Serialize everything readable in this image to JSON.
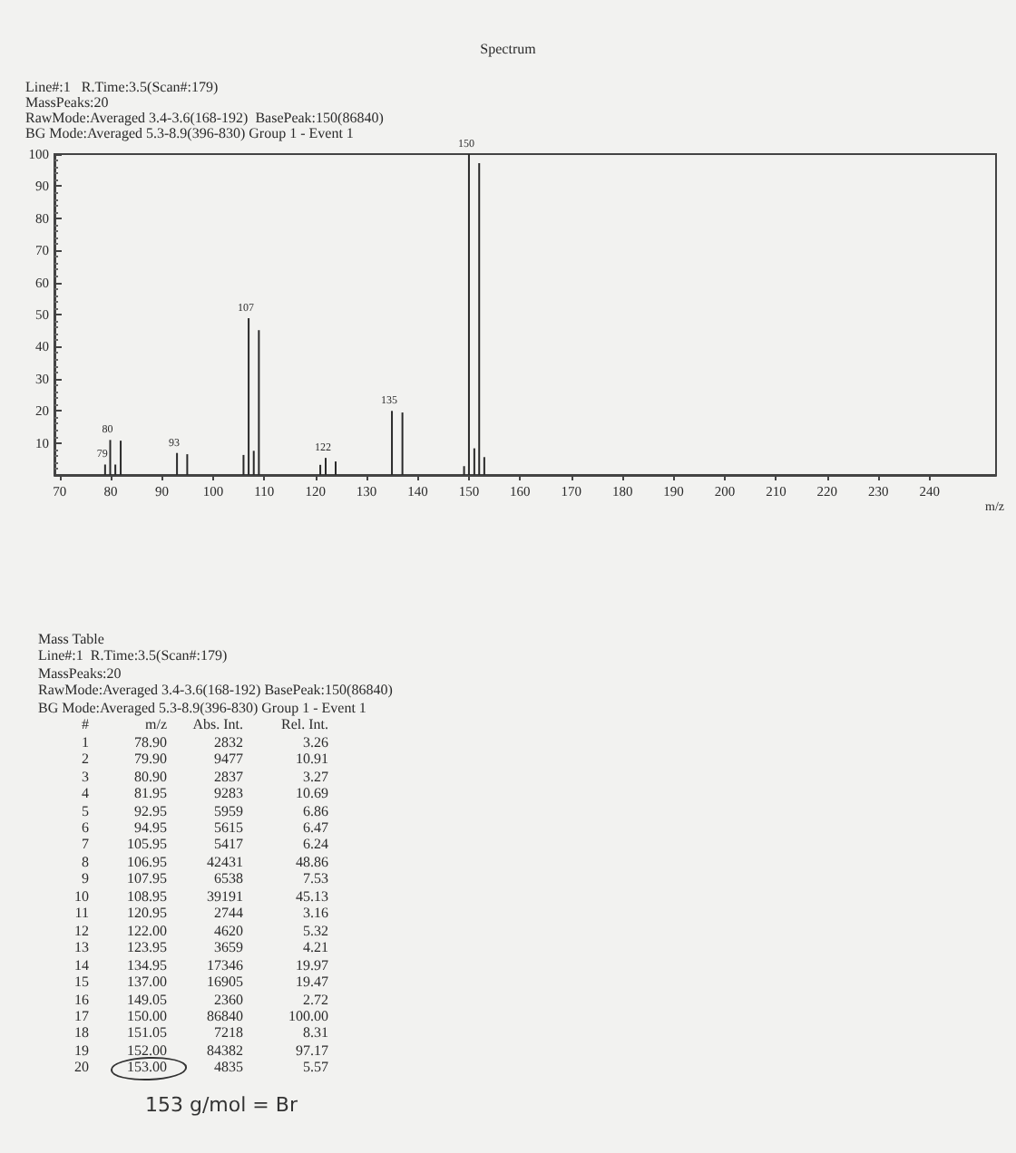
{
  "chart_data": {
    "type": "bar",
    "title": "Spectrum",
    "subtitle": "Line#:1   R.Time:3.5(Scan#:179)\nMassPeaks:20\nRawMode:Averaged 3.4-3.6(168-192)  BasePeak:150(86840)\nBG Mode:Averaged 5.3-8.9(396-830) Group 1 - Event 1",
    "xlabel": "m/z",
    "x": [
      78.9,
      79.9,
      80.9,
      81.95,
      92.95,
      94.95,
      105.95,
      106.95,
      107.95,
      108.95,
      120.95,
      122.0,
      123.95,
      134.95,
      137.0,
      149.05,
      150.0,
      151.05,
      152.0,
      153.0
    ],
    "values": [
      3.26,
      10.91,
      3.27,
      10.69,
      6.86,
      6.47,
      6.24,
      48.86,
      7.53,
      45.13,
      3.16,
      5.32,
      4.21,
      19.97,
      19.47,
      2.72,
      100.0,
      8.31,
      97.17,
      5.57
    ],
    "color": "#2a2a2a",
    "xlim": [
      69,
      253
    ],
    "xticks": [
      70,
      80,
      90,
      100,
      110,
      120,
      130,
      140,
      150,
      160,
      170,
      180,
      190,
      200,
      210,
      220,
      230,
      240
    ],
    "ylim": [
      0,
      100
    ],
    "yticks": [
      {
        "value": 0,
        "label": null
      },
      10,
      20,
      30,
      40,
      50,
      60,
      70,
      80,
      90,
      100
    ],
    "annotations": [
      {
        "text": "79",
        "x": 78.9,
        "y": 3.26
      },
      {
        "text": "80",
        "x": 79.9,
        "y": 10.91
      },
      {
        "text": "93",
        "x": 92.95,
        "y": 6.86
      },
      {
        "text": "107",
        "x": 106.95,
        "y": 48.86
      },
      {
        "text": "122",
        "x": 122.0,
        "y": 5.32
      },
      {
        "text": "135",
        "x": 134.95,
        "y": 19.97
      },
      {
        "text": "150",
        "x": 150.0,
        "y": 100.0
      },
      "Mass Table",
      "Line#:1  R.Time:3.5(Scan#:179)",
      "MassPeaks:20",
      "RawMode:Averaged 3.4-3.6(168-192) BasePeak:150(86840)",
      "BG Mode:Averaged 5.3-8.9(396-830) Group 1 - Event 1",
      "#\tm/z\tAbs. Int.\tRel. Int.",
      "1\t78.90\t2832\t3.26",
      "2\t79.90\t9477\t10.91",
      "3\t80.90\t2837\t3.27",
      "4\t81.95\t9283\t10.69",
      "5\t92.95\t5959\t6.86",
      "6\t94.95\t5615\t6.47",
      "7\t105.95\t5417\t6.24",
      "8\t106.95\t42431\t48.86",
      "9\t107.95\t6538\t7.53",
      "10\t108.95\t39191\t45.13",
      "11\t120.95\t2744\t3.16",
      "12\t122.00\t4620\t5.32",
      "13\t123.95\t3659\t4.21",
      "14\t134.95\t17346\t19.97",
      "15\t137.00\t16905\t19.47",
      "16\t149.05\t2360\t2.72",
      "17\t150.00\t86840\t100.00",
      "18\t151.05\t7218\t8.31",
      "19\t152.00\t84382\t97.17",
      "20\t153.00\t4835\t5.57",
      "153 g/mol = Br"
    ]
  }
}
